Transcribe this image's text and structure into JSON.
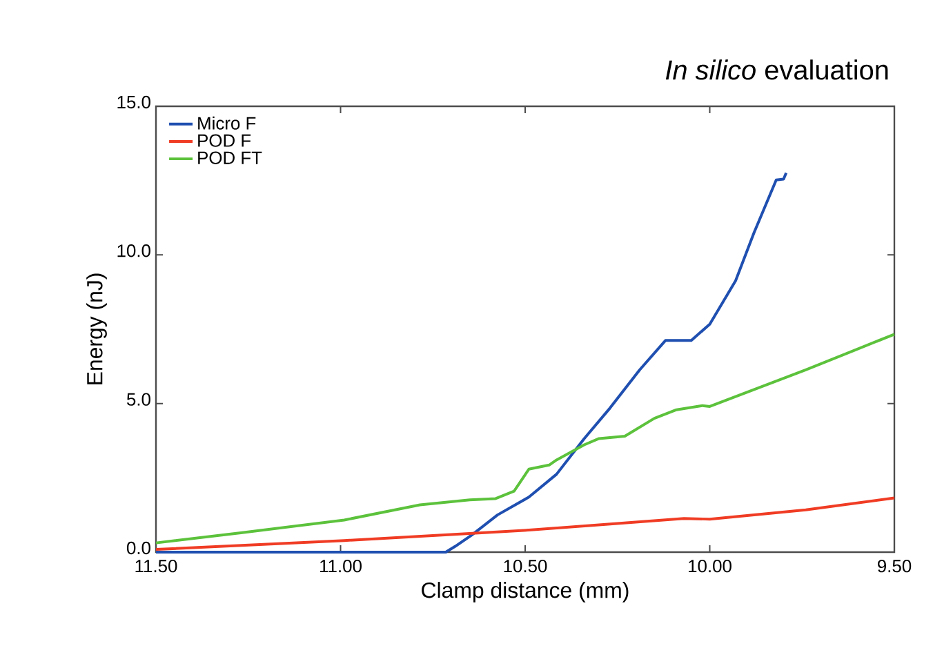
{
  "chart_data": {
    "type": "line",
    "title": "*In silico* evaluation",
    "xlabel": "Clamp distance (mm)",
    "ylabel": "Energy (nJ)",
    "xlim": [
      11.5,
      9.5
    ],
    "ylim": [
      0,
      15
    ],
    "xticks": [
      {
        "value": 11.5,
        "label": "11.50"
      },
      {
        "value": 11.0,
        "label": "11.00"
      },
      {
        "value": 10.5,
        "label": "10.50"
      },
      {
        "value": 10.0,
        "label": "10.00"
      },
      {
        "value": 9.5,
        "label": "9.50"
      }
    ],
    "yticks": [
      {
        "value": 0,
        "label": "0.0"
      },
      {
        "value": 5,
        "label": "5.0"
      },
      {
        "value": 10,
        "label": "10.0"
      },
      {
        "value": 15,
        "label": "15.0"
      }
    ],
    "legend": "top left",
    "grid": false,
    "marker": "none",
    "line_style": "solid",
    "series": [
      {
        "name": "Micro F",
        "color": "#1f4fb0",
        "x": [
          11.5,
          10.715,
          10.69,
          10.645,
          10.575,
          10.49,
          10.415,
          10.34,
          10.27,
          10.19,
          10.12,
          10.05,
          10.0,
          9.93,
          9.88,
          9.82,
          9.8,
          9.793
        ],
        "values": [
          0,
          0,
          0.19,
          0.57,
          1.25,
          1.85,
          2.62,
          3.82,
          4.85,
          6.13,
          7.12,
          7.12,
          7.67,
          9.13,
          10.75,
          12.52,
          12.55,
          12.76
        ]
      },
      {
        "name": "POD F",
        "color": "#f03c24",
        "x": [
          11.5,
          10.99,
          10.49,
          10.07,
          10.0,
          9.74,
          9.5
        ],
        "values": [
          0.09,
          0.39,
          0.74,
          1.13,
          1.11,
          1.42,
          1.82
        ]
      },
      {
        "name": "POD FT",
        "color": "#5cc23c",
        "x": [
          11.5,
          11.27,
          10.99,
          10.785,
          10.65,
          10.58,
          10.53,
          10.49,
          10.435,
          10.415,
          10.34,
          10.3,
          10.23,
          10.15,
          10.09,
          10.02,
          10.0,
          9.74,
          9.5
        ],
        "values": [
          0.31,
          0.65,
          1.08,
          1.59,
          1.76,
          1.8,
          2.05,
          2.79,
          2.93,
          3.1,
          3.61,
          3.82,
          3.9,
          4.5,
          4.79,
          4.93,
          4.9,
          6.13,
          7.33
        ]
      }
    ]
  }
}
